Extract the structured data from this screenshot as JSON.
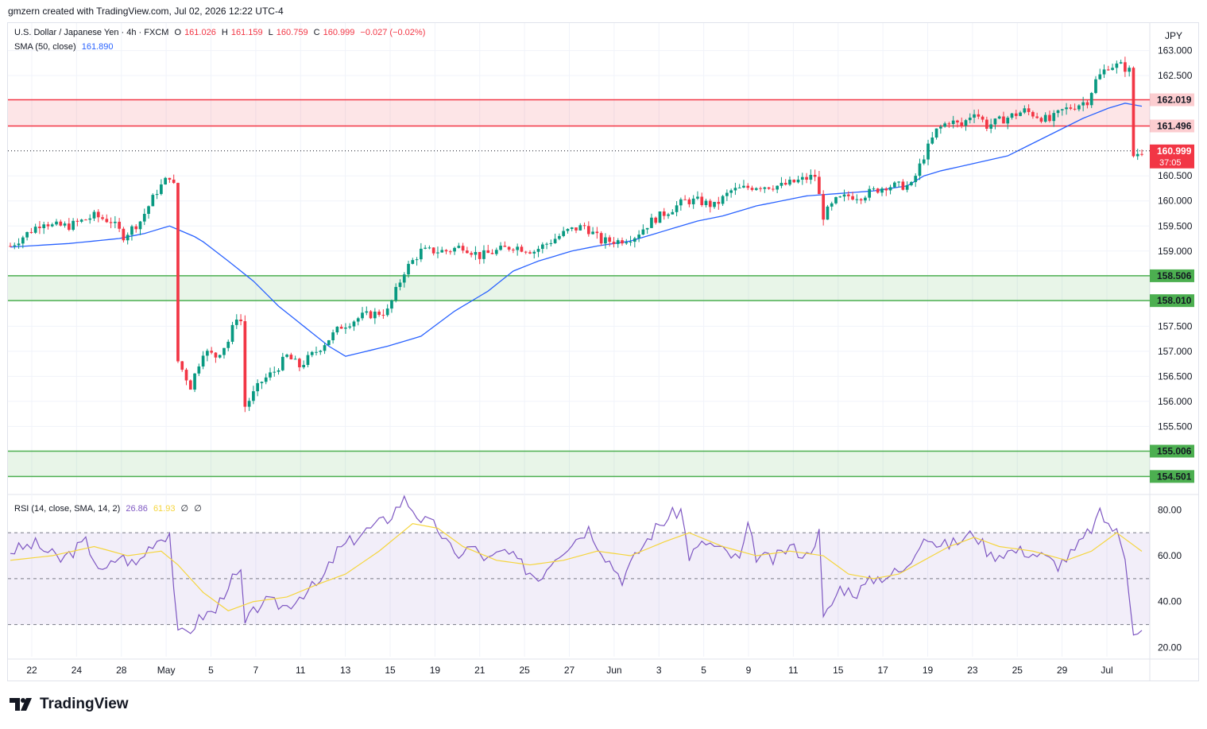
{
  "header": {
    "credit": "gmzern created with TradingView.com, Jul 02, 2026 12:22 UTC-4"
  },
  "legend": {
    "symbol": "U.S. Dollar / Japanese Yen · 4h · FXCM",
    "o_label": "O",
    "o": "161.026",
    "h_label": "H",
    "h": "161.159",
    "l_label": "L",
    "l": "160.759",
    "c_label": "C",
    "c": "160.999",
    "change": "−0.027 (−0.02%)",
    "sma_label": "SMA (50, close)",
    "sma_value": "161.890",
    "rsi_label": "RSI (14, close, SMA, 14, 2)",
    "rsi_value": "26.86",
    "rsi_sma": "61.93",
    "rsi_extra1": "∅",
    "rsi_extra2": "∅"
  },
  "currency": "JPY",
  "brand": "TradingView",
  "colors": {
    "up": "#089981",
    "down": "#f23645",
    "sma": "#2962ff",
    "rsi": "#7e57c2",
    "rsi_ma": "#f5d53d",
    "resistance_zone": "#f23645",
    "support_zone": "#4caf50"
  },
  "chart_data": [
    {
      "type": "candlestick",
      "title": "U.S. Dollar / Japanese Yen · 4h · FXCM",
      "y_ticks": [
        "163.000",
        "162.500",
        "160.500",
        "160.000",
        "159.500",
        "159.000",
        "157.500",
        "157.000",
        "156.500",
        "156.000",
        "155.500"
      ],
      "ylim": [
        154.3,
        163.55
      ],
      "x_tick_labels": [
        "22",
        "24",
        "28",
        "May",
        "5",
        "7",
        "11",
        "13",
        "15",
        "19",
        "21",
        "25",
        "27",
        "Jun",
        "3",
        "5",
        "9",
        "11",
        "15",
        "17",
        "19",
        "23",
        "25",
        "29",
        "Jul"
      ],
      "zones": [
        {
          "type": "resistance",
          "top": 162.019,
          "bottom": 161.496,
          "top_label": "162.019",
          "bottom_label": "161.496"
        },
        {
          "type": "support",
          "top": 158.506,
          "bottom": 158.01,
          "top_label": "158.506",
          "bottom_label": "158.010"
        },
        {
          "type": "support",
          "top": 155.006,
          "bottom": 154.501,
          "top_label": "155.006",
          "bottom_label": "154.501"
        }
      ],
      "last_price": 160.999,
      "last_price_label": "160.999",
      "countdown": "37:05",
      "sma_last": 161.89,
      "price_path": [
        [
          0,
          159.1
        ],
        [
          8,
          159.6
        ],
        [
          10,
          159.5
        ],
        [
          14,
          159.5
        ],
        [
          20,
          159.7
        ],
        [
          24,
          159.6
        ],
        [
          27,
          159.3
        ],
        [
          31,
          159.6
        ],
        [
          35,
          160.2
        ],
        [
          38,
          160.5
        ],
        [
          39,
          160.3
        ],
        [
          40,
          156.8
        ],
        [
          43,
          156.3
        ],
        [
          46,
          157.0
        ],
        [
          49,
          156.9
        ],
        [
          52,
          157.2
        ],
        [
          54,
          157.7
        ],
        [
          55,
          157.6
        ],
        [
          56,
          155.9
        ],
        [
          60,
          156.4
        ],
        [
          63,
          156.6
        ],
        [
          66,
          156.9
        ],
        [
          69,
          156.7
        ],
        [
          73,
          157.0
        ],
        [
          79,
          157.5
        ],
        [
          84,
          157.7
        ],
        [
          90,
          157.8
        ],
        [
          94,
          158.6
        ],
        [
          98,
          159.0
        ],
        [
          104,
          159.0
        ],
        [
          108,
          159.1
        ],
        [
          112,
          158.9
        ],
        [
          116,
          159.0
        ],
        [
          120,
          159.1
        ],
        [
          125,
          159.0
        ],
        [
          129,
          159.2
        ],
        [
          133,
          159.4
        ],
        [
          137,
          159.5
        ],
        [
          141,
          159.2
        ],
        [
          145,
          159.2
        ],
        [
          149,
          159.3
        ],
        [
          153,
          159.6
        ],
        [
          157,
          159.8
        ],
        [
          161,
          160.0
        ],
        [
          164,
          160.0
        ],
        [
          168,
          159.9
        ],
        [
          172,
          160.2
        ],
        [
          178,
          160.3
        ],
        [
          184,
          160.3
        ],
        [
          188,
          160.4
        ],
        [
          192,
          160.5
        ],
        [
          194,
          159.7
        ],
        [
          197,
          160.0
        ],
        [
          200,
          160.1
        ],
        [
          203,
          160.1
        ],
        [
          206,
          160.2
        ],
        [
          209,
          160.3
        ],
        [
          212,
          160.3
        ],
        [
          215,
          160.3
        ],
        [
          218,
          160.9
        ],
        [
          221,
          161.4
        ],
        [
          224,
          161.6
        ],
        [
          227,
          161.5
        ],
        [
          230,
          161.8
        ],
        [
          233,
          161.5
        ],
        [
          236,
          161.6
        ],
        [
          239,
          161.7
        ],
        [
          242,
          161.8
        ],
        [
          245,
          161.7
        ],
        [
          248,
          161.6
        ],
        [
          251,
          161.8
        ],
        [
          254,
          161.9
        ],
        [
          257,
          162.0
        ],
        [
          259,
          162.4
        ],
        [
          262,
          162.7
        ],
        [
          265,
          162.7
        ],
        [
          267,
          162.6
        ],
        [
          268,
          160.9
        ],
        [
          270,
          161.0
        ]
      ],
      "sma_path": [
        [
          0,
          159.08
        ],
        [
          14,
          159.15
        ],
        [
          20,
          159.2
        ],
        [
          26,
          159.25
        ],
        [
          32,
          159.35
        ],
        [
          38,
          159.5
        ],
        [
          45,
          159.25
        ],
        [
          52,
          158.8
        ],
        [
          58,
          158.4
        ],
        [
          64,
          157.9
        ],
        [
          70,
          157.5
        ],
        [
          76,
          157.1
        ],
        [
          80,
          156.9
        ],
        [
          90,
          157.1
        ],
        [
          98,
          157.3
        ],
        [
          106,
          157.8
        ],
        [
          114,
          158.2
        ],
        [
          120,
          158.6
        ],
        [
          126,
          158.8
        ],
        [
          134,
          159.0
        ],
        [
          140,
          159.1
        ],
        [
          148,
          159.2
        ],
        [
          156,
          159.4
        ],
        [
          164,
          159.6
        ],
        [
          170,
          159.7
        ],
        [
          178,
          159.9
        ],
        [
          184,
          160.0
        ],
        [
          190,
          160.1
        ],
        [
          198,
          160.15
        ],
        [
          206,
          160.2
        ],
        [
          214,
          160.3
        ],
        [
          218,
          160.5
        ],
        [
          222,
          160.6
        ],
        [
          230,
          160.75
        ],
        [
          238,
          160.9
        ],
        [
          244,
          161.15
        ],
        [
          250,
          161.4
        ],
        [
          256,
          161.65
        ],
        [
          262,
          161.85
        ],
        [
          266,
          161.95
        ],
        [
          270,
          161.89
        ]
      ]
    },
    {
      "type": "line",
      "title": "RSI (14, close, SMA, 14, 2)",
      "y_ticks": [
        "80.00",
        "60.00",
        "40.00",
        "20.00"
      ],
      "ylim": [
        16,
        86
      ],
      "bands": {
        "upper": 70,
        "middle": 50,
        "lower": 30
      },
      "series": [
        {
          "name": "RSI",
          "values": [
            [
              0,
              62
            ],
            [
              6,
              65
            ],
            [
              12,
              58
            ],
            [
              18,
              66
            ],
            [
              22,
              52
            ],
            [
              26,
              60
            ],
            [
              30,
              56
            ],
            [
              34,
              66
            ],
            [
              38,
              70
            ],
            [
              40,
              25
            ],
            [
              43,
              28
            ],
            [
              46,
              34
            ],
            [
              49,
              36
            ],
            [
              52,
              48
            ],
            [
              55,
              52
            ],
            [
              56,
              30
            ],
            [
              60,
              40
            ],
            [
              66,
              38
            ],
            [
              70,
              44
            ],
            [
              74,
              48
            ],
            [
              78,
              62
            ],
            [
              84,
              70
            ],
            [
              90,
              76
            ],
            [
              94,
              85
            ],
            [
              98,
              76
            ],
            [
              102,
              72
            ],
            [
              106,
              60
            ],
            [
              110,
              64
            ],
            [
              114,
              58
            ],
            [
              118,
              62
            ],
            [
              122,
              56
            ],
            [
              126,
              50
            ],
            [
              130,
              60
            ],
            [
              134,
              66
            ],
            [
              138,
              72
            ],
            [
              142,
              60
            ],
            [
              146,
              50
            ],
            [
              150,
              62
            ],
            [
              154,
              72
            ],
            [
              158,
              78
            ],
            [
              160,
              80
            ],
            [
              162,
              60
            ],
            [
              166,
              66
            ],
            [
              170,
              62
            ],
            [
              174,
              58
            ],
            [
              176,
              72
            ],
            [
              178,
              60
            ],
            [
              182,
              58
            ],
            [
              186,
              64
            ],
            [
              190,
              60
            ],
            [
              193,
              70
            ],
            [
              194,
              32
            ],
            [
              198,
              46
            ],
            [
              202,
              44
            ],
            [
              206,
              50
            ],
            [
              210,
              52
            ],
            [
              214,
              54
            ],
            [
              218,
              70
            ],
            [
              222,
              64
            ],
            [
              226,
              66
            ],
            [
              230,
              70
            ],
            [
              234,
              60
            ],
            [
              238,
              62
            ],
            [
              242,
              62
            ],
            [
              246,
              60
            ],
            [
              250,
              56
            ],
            [
              254,
              62
            ],
            [
              258,
              72
            ],
            [
              260,
              78
            ],
            [
              264,
              70
            ],
            [
              266,
              60
            ],
            [
              268,
              28
            ],
            [
              270,
              27
            ]
          ]
        },
        {
          "name": "RSI-based MA",
          "values": [
            [
              0,
              58
            ],
            [
              10,
              60
            ],
            [
              20,
              64
            ],
            [
              28,
              60
            ],
            [
              36,
              62
            ],
            [
              40,
              56
            ],
            [
              46,
              44
            ],
            [
              52,
              36
            ],
            [
              58,
              40
            ],
            [
              66,
              42
            ],
            [
              74,
              48
            ],
            [
              80,
              52
            ],
            [
              88,
              62
            ],
            [
              96,
              74
            ],
            [
              102,
              72
            ],
            [
              108,
              64
            ],
            [
              116,
              58
            ],
            [
              124,
              56
            ],
            [
              132,
              58
            ],
            [
              140,
              62
            ],
            [
              148,
              60
            ],
            [
              156,
              66
            ],
            [
              162,
              70
            ],
            [
              170,
              64
            ],
            [
              178,
              60
            ],
            [
              186,
              62
            ],
            [
              194,
              60
            ],
            [
              200,
              52
            ],
            [
              206,
              50
            ],
            [
              212,
              52
            ],
            [
              218,
              58
            ],
            [
              224,
              64
            ],
            [
              230,
              68
            ],
            [
              236,
              64
            ],
            [
              244,
              62
            ],
            [
              252,
              58
            ],
            [
              258,
              62
            ],
            [
              264,
              70
            ],
            [
              270,
              61.93
            ]
          ]
        }
      ],
      "last_value": 26.86,
      "ma_last": 61.93
    }
  ]
}
